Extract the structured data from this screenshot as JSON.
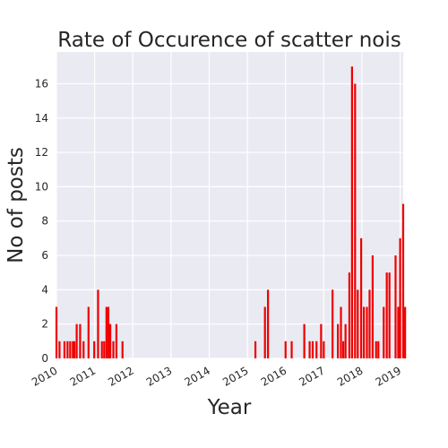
{
  "chart_data": {
    "type": "bar",
    "title": "Rate of Occurence of scatter nois",
    "xlabel": "Year",
    "ylabel": "No of posts",
    "xlim": [
      2010.0,
      2019.08
    ],
    "ylim": [
      0,
      17.85
    ],
    "x_ticks": [
      "2010",
      "2011",
      "2012",
      "2013",
      "2014",
      "2015",
      "2016",
      "2017",
      "2018",
      "2019"
    ],
    "y_ticks": [
      0,
      2,
      4,
      6,
      8,
      10,
      12,
      14,
      16
    ],
    "grid": true,
    "colors": {
      "bar": "#ee0000",
      "plot_bg": "#eaeaf2",
      "grid": "#ffffff"
    },
    "series": [
      {
        "x": [
          2010.0,
          2010.08,
          2010.21,
          2010.29,
          2010.36,
          2010.43,
          2010.47,
          2010.53,
          2010.62,
          2010.71,
          2010.84,
          2010.99,
          2011.09,
          2011.19,
          2011.25,
          2011.31,
          2011.36,
          2011.41,
          2011.49,
          2011.57,
          2011.73,
          2015.21,
          2015.46,
          2015.54,
          2016.0,
          2016.16,
          2016.49,
          2016.63,
          2016.71,
          2016.81,
          2016.93,
          2017.0,
          2017.23,
          2017.37,
          2017.45,
          2017.51,
          2017.57,
          2017.67,
          2017.74,
          2017.82,
          2017.89,
          2017.98,
          2018.05,
          2018.13,
          2018.2,
          2018.28,
          2018.37,
          2018.43,
          2018.57,
          2018.65,
          2018.72,
          2018.88,
          2018.95,
          2019.0,
          2019.08,
          2019.13
        ],
        "values": [
          3,
          1,
          1,
          1,
          1,
          1,
          1,
          2,
          2,
          1,
          3,
          1,
          4,
          1,
          1,
          3,
          3,
          2,
          1,
          2,
          1,
          1,
          3,
          4,
          1,
          1,
          2,
          1,
          1,
          1,
          2,
          1,
          4,
          2,
          3,
          1,
          2,
          5,
          17,
          16,
          4,
          7,
          3,
          3,
          4,
          6,
          1,
          1,
          3,
          5,
          5,
          6,
          3,
          7,
          9,
          3
        ]
      }
    ]
  }
}
